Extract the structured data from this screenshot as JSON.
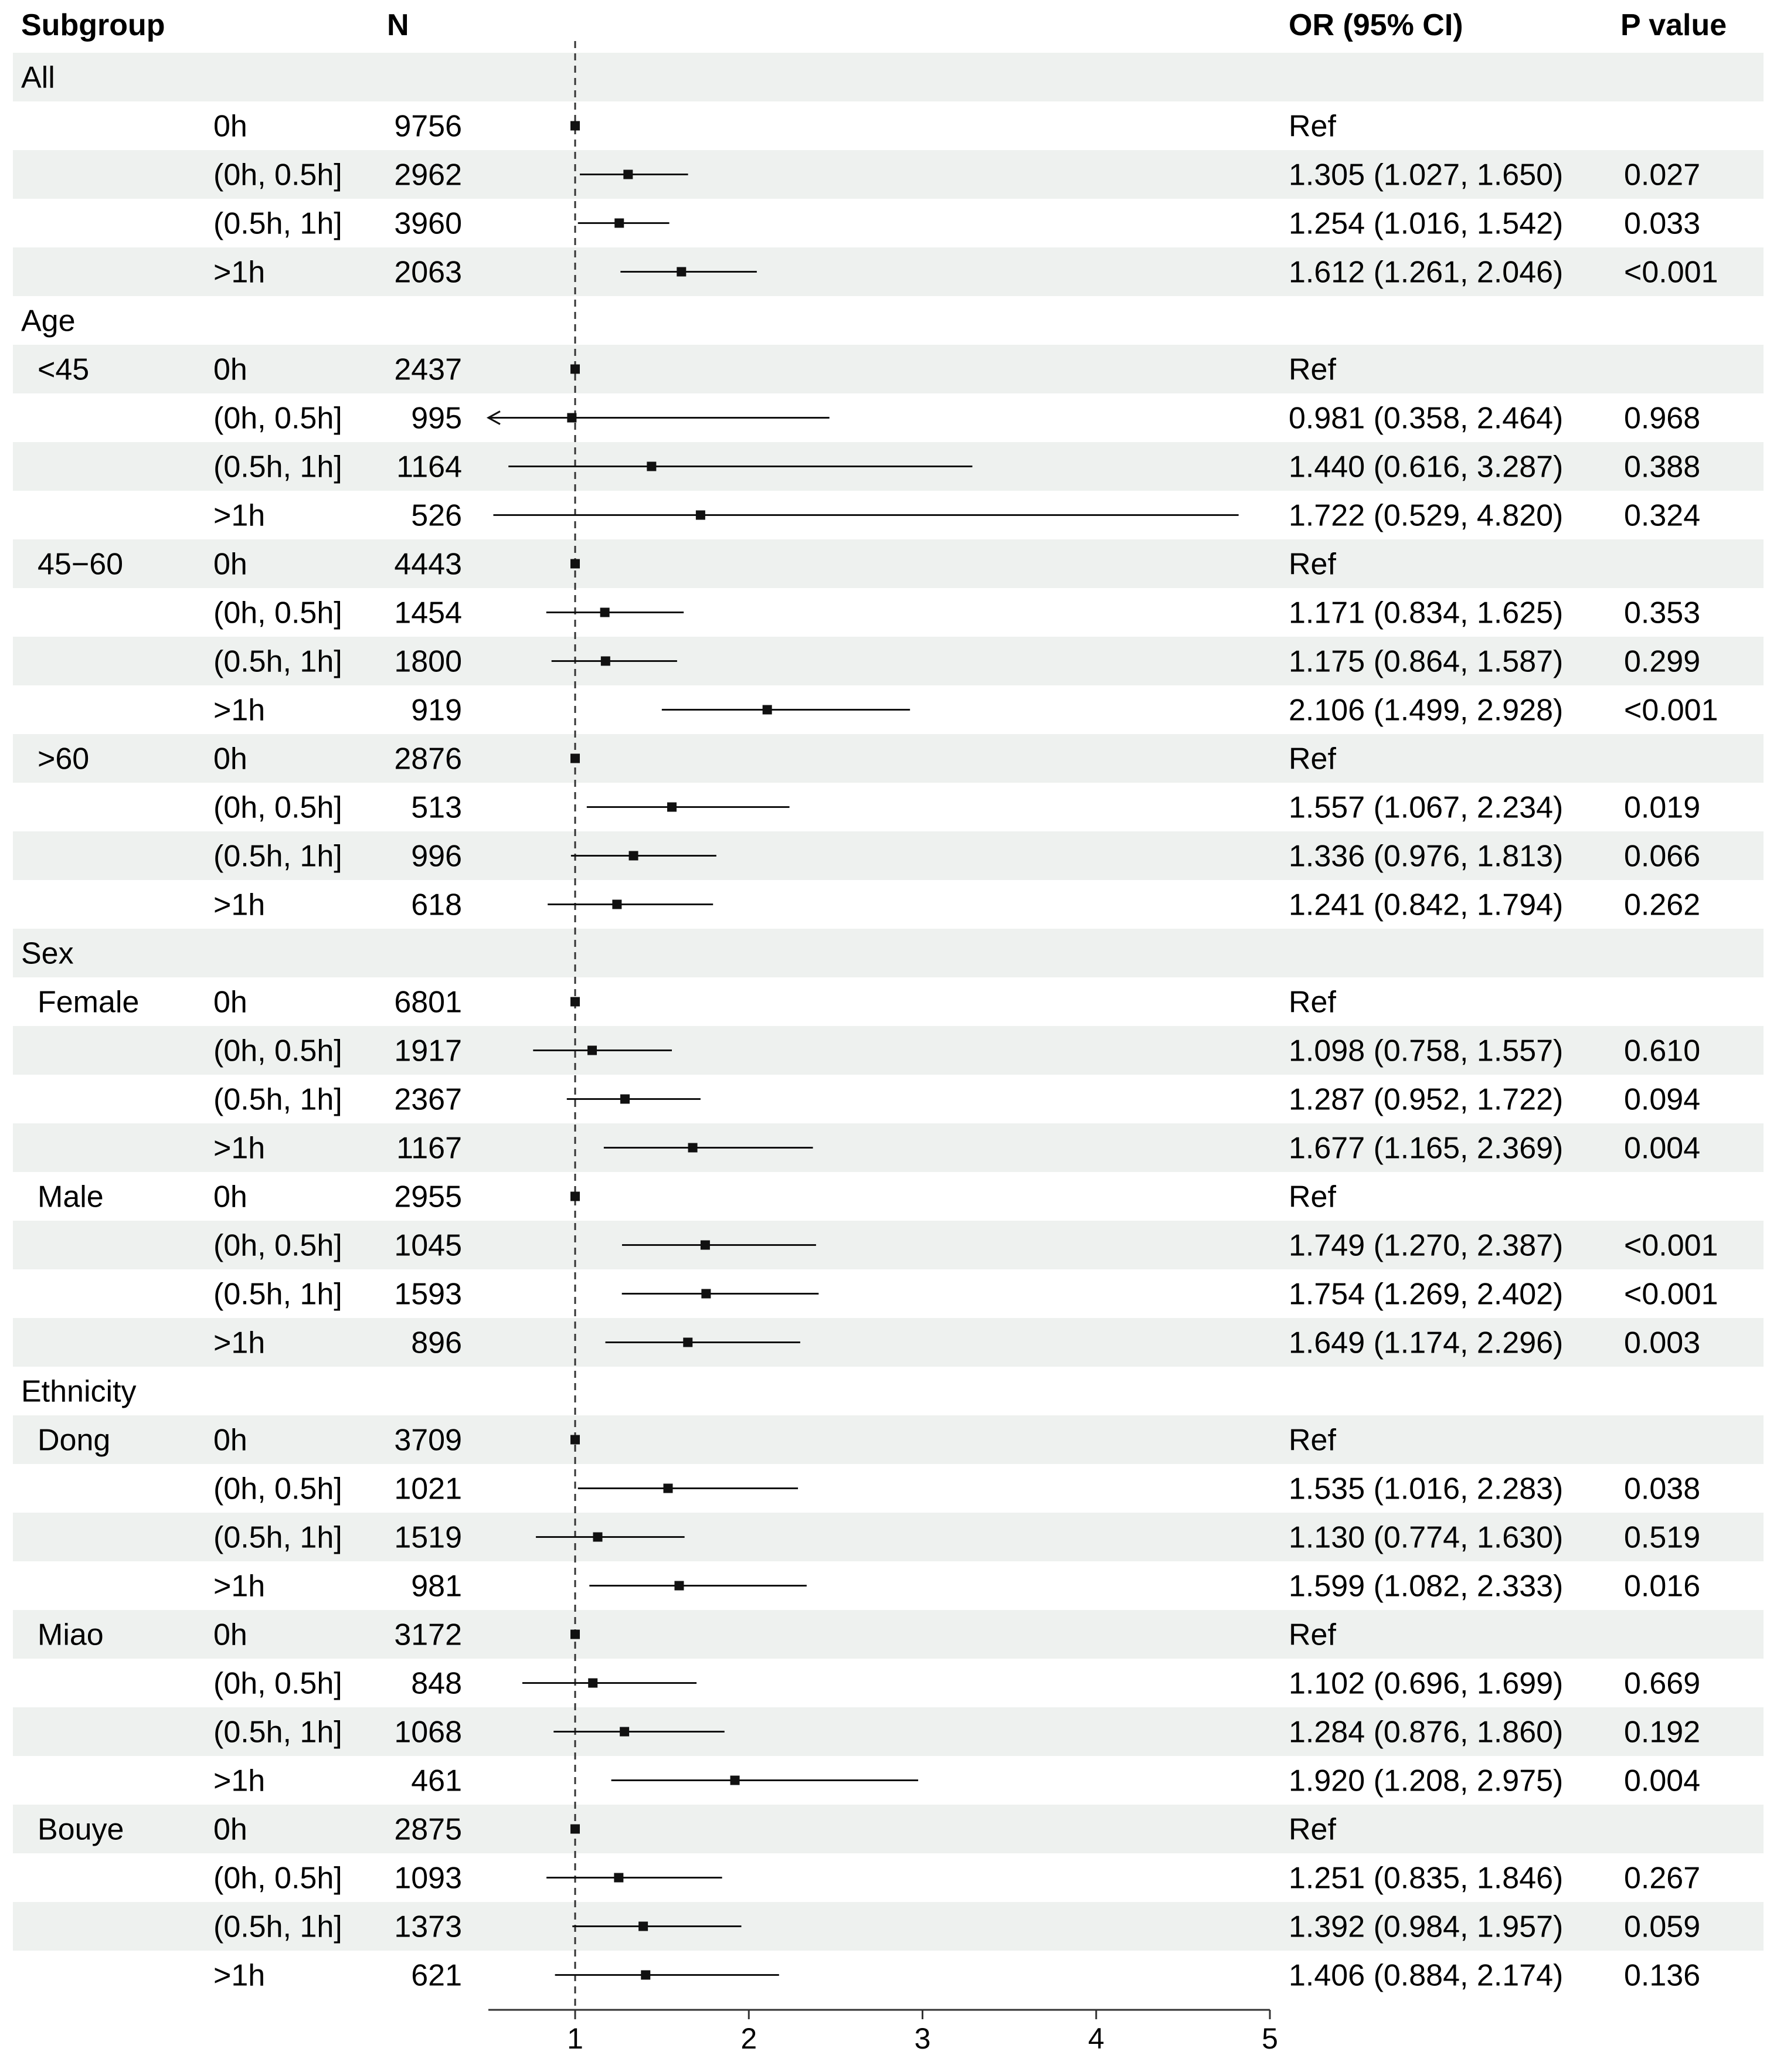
{
  "chart_data": {
    "type": "forest",
    "headers": {
      "subgroup": "Subgroup",
      "n": "N",
      "or": "OR (95% CI)",
      "p": "P value"
    },
    "reference_line": 1,
    "xlim": [
      0.5,
      5
    ],
    "ticks": [
      "1",
      "2",
      "3",
      "4",
      "5"
    ],
    "rows": [
      {
        "label": "All",
        "sub": "",
        "level": "",
        "n": "",
        "or": null,
        "lo": null,
        "hi": null,
        "or_text": "",
        "p": ""
      },
      {
        "label": "",
        "sub": "",
        "level": "0h",
        "n": "9756",
        "or": 1,
        "lo": 1,
        "hi": 1,
        "or_text": "Ref",
        "p": ""
      },
      {
        "label": "",
        "sub": "",
        "level": "(0h, 0.5h]",
        "n": "2962",
        "or": 1.305,
        "lo": 1.027,
        "hi": 1.65,
        "or_text": "1.305 (1.027, 1.650)",
        "p": "0.027"
      },
      {
        "label": "",
        "sub": "",
        "level": "(0.5h, 1h]",
        "n": "3960",
        "or": 1.254,
        "lo": 1.016,
        "hi": 1.542,
        "or_text": "1.254 (1.016, 1.542)",
        "p": "0.033"
      },
      {
        "label": "",
        "sub": "",
        "level": ">1h",
        "n": "2063",
        "or": 1.612,
        "lo": 1.261,
        "hi": 2.046,
        "or_text": "1.612 (1.261, 2.046)",
        "p": "<0.001"
      },
      {
        "label": "Age",
        "sub": "",
        "level": "",
        "n": "",
        "or": null,
        "lo": null,
        "hi": null,
        "or_text": "",
        "p": ""
      },
      {
        "label": "",
        "sub": "<45",
        "level": "0h",
        "n": "2437",
        "or": 1,
        "lo": 1,
        "hi": 1,
        "or_text": "Ref",
        "p": ""
      },
      {
        "label": "",
        "sub": "",
        "level": "(0h, 0.5h]",
        "n": "995",
        "or": 0.981,
        "lo": 0.358,
        "hi": 2.464,
        "or_text": "0.981 (0.358, 2.464)",
        "p": "0.968"
      },
      {
        "label": "",
        "sub": "",
        "level": "(0.5h, 1h]",
        "n": "1164",
        "or": 1.44,
        "lo": 0.616,
        "hi": 3.287,
        "or_text": "1.440 (0.616, 3.287)",
        "p": "0.388"
      },
      {
        "label": "",
        "sub": "",
        "level": ">1h",
        "n": "526",
        "or": 1.722,
        "lo": 0.529,
        "hi": 4.82,
        "or_text": "1.722 (0.529, 4.820)",
        "p": "0.324"
      },
      {
        "label": "",
        "sub": "45−60",
        "level": "0h",
        "n": "4443",
        "or": 1,
        "lo": 1,
        "hi": 1,
        "or_text": "Ref",
        "p": ""
      },
      {
        "label": "",
        "sub": "",
        "level": "(0h, 0.5h]",
        "n": "1454",
        "or": 1.171,
        "lo": 0.834,
        "hi": 1.625,
        "or_text": "1.171 (0.834, 1.625)",
        "p": "0.353"
      },
      {
        "label": "",
        "sub": "",
        "level": "(0.5h, 1h]",
        "n": "1800",
        "or": 1.175,
        "lo": 0.864,
        "hi": 1.587,
        "or_text": "1.175 (0.864, 1.587)",
        "p": "0.299"
      },
      {
        "label": "",
        "sub": "",
        "level": ">1h",
        "n": "919",
        "or": 2.106,
        "lo": 1.499,
        "hi": 2.928,
        "or_text": "2.106 (1.499, 2.928)",
        "p": "<0.001"
      },
      {
        "label": "",
        "sub": ">60",
        "level": "0h",
        "n": "2876",
        "or": 1,
        "lo": 1,
        "hi": 1,
        "or_text": "Ref",
        "p": ""
      },
      {
        "label": "",
        "sub": "",
        "level": "(0h, 0.5h]",
        "n": "513",
        "or": 1.557,
        "lo": 1.067,
        "hi": 2.234,
        "or_text": "1.557 (1.067, 2.234)",
        "p": "0.019"
      },
      {
        "label": "",
        "sub": "",
        "level": "(0.5h, 1h]",
        "n": "996",
        "or": 1.336,
        "lo": 0.976,
        "hi": 1.813,
        "or_text": "1.336 (0.976, 1.813)",
        "p": "0.066"
      },
      {
        "label": "",
        "sub": "",
        "level": ">1h",
        "n": "618",
        "or": 1.241,
        "lo": 0.842,
        "hi": 1.794,
        "or_text": "1.241 (0.842, 1.794)",
        "p": "0.262"
      },
      {
        "label": "Sex",
        "sub": "",
        "level": "",
        "n": "",
        "or": null,
        "lo": null,
        "hi": null,
        "or_text": "",
        "p": ""
      },
      {
        "label": "",
        "sub": "Female",
        "level": "0h",
        "n": "6801",
        "or": 1,
        "lo": 1,
        "hi": 1,
        "or_text": "Ref",
        "p": ""
      },
      {
        "label": "",
        "sub": "",
        "level": "(0h, 0.5h]",
        "n": "1917",
        "or": 1.098,
        "lo": 0.758,
        "hi": 1.557,
        "or_text": "1.098 (0.758, 1.557)",
        "p": "0.610"
      },
      {
        "label": "",
        "sub": "",
        "level": "(0.5h, 1h]",
        "n": "2367",
        "or": 1.287,
        "lo": 0.952,
        "hi": 1.722,
        "or_text": "1.287 (0.952, 1.722)",
        "p": "0.094"
      },
      {
        "label": "",
        "sub": "",
        "level": ">1h",
        "n": "1167",
        "or": 1.677,
        "lo": 1.165,
        "hi": 2.369,
        "or_text": "1.677 (1.165, 2.369)",
        "p": "0.004"
      },
      {
        "label": "",
        "sub": "Male",
        "level": "0h",
        "n": "2955",
        "or": 1,
        "lo": 1,
        "hi": 1,
        "or_text": "Ref",
        "p": ""
      },
      {
        "label": "",
        "sub": "",
        "level": "(0h, 0.5h]",
        "n": "1045",
        "or": 1.749,
        "lo": 1.27,
        "hi": 2.387,
        "or_text": "1.749 (1.270, 2.387)",
        "p": "<0.001"
      },
      {
        "label": "",
        "sub": "",
        "level": "(0.5h, 1h]",
        "n": "1593",
        "or": 1.754,
        "lo": 1.269,
        "hi": 2.402,
        "or_text": "1.754 (1.269, 2.402)",
        "p": "<0.001"
      },
      {
        "label": "",
        "sub": "",
        "level": ">1h",
        "n": "896",
        "or": 1.649,
        "lo": 1.174,
        "hi": 2.296,
        "or_text": "1.649 (1.174, 2.296)",
        "p": "0.003"
      },
      {
        "label": "Ethnicity",
        "sub": "",
        "level": "",
        "n": "",
        "or": null,
        "lo": null,
        "hi": null,
        "or_text": "",
        "p": ""
      },
      {
        "label": "",
        "sub": "Dong",
        "level": "0h",
        "n": "3709",
        "or": 1,
        "lo": 1,
        "hi": 1,
        "or_text": "Ref",
        "p": ""
      },
      {
        "label": "",
        "sub": "",
        "level": "(0h, 0.5h]",
        "n": "1021",
        "or": 1.535,
        "lo": 1.016,
        "hi": 2.283,
        "or_text": "1.535 (1.016, 2.283)",
        "p": "0.038"
      },
      {
        "label": "",
        "sub": "",
        "level": "(0.5h, 1h]",
        "n": "1519",
        "or": 1.13,
        "lo": 0.774,
        "hi": 1.63,
        "or_text": "1.130 (0.774, 1.630)",
        "p": "0.519"
      },
      {
        "label": "",
        "sub": "",
        "level": ">1h",
        "n": "981",
        "or": 1.599,
        "lo": 1.082,
        "hi": 2.333,
        "or_text": "1.599 (1.082, 2.333)",
        "p": "0.016"
      },
      {
        "label": "",
        "sub": "Miao",
        "level": "0h",
        "n": "3172",
        "or": 1,
        "lo": 1,
        "hi": 1,
        "or_text": "Ref",
        "p": ""
      },
      {
        "label": "",
        "sub": "",
        "level": "(0h, 0.5h]",
        "n": "848",
        "or": 1.102,
        "lo": 0.696,
        "hi": 1.699,
        "or_text": "1.102 (0.696, 1.699)",
        "p": "0.669"
      },
      {
        "label": "",
        "sub": "",
        "level": "(0.5h, 1h]",
        "n": "1068",
        "or": 1.284,
        "lo": 0.876,
        "hi": 1.86,
        "or_text": "1.284 (0.876, 1.860)",
        "p": "0.192"
      },
      {
        "label": "",
        "sub": "",
        "level": ">1h",
        "n": "461",
        "or": 1.92,
        "lo": 1.208,
        "hi": 2.975,
        "or_text": "1.920 (1.208, 2.975)",
        "p": "0.004"
      },
      {
        "label": "",
        "sub": "Bouye",
        "level": "0h",
        "n": "2875",
        "or": 1,
        "lo": 1,
        "hi": 1,
        "or_text": "Ref",
        "p": ""
      },
      {
        "label": "",
        "sub": "",
        "level": "(0h, 0.5h]",
        "n": "1093",
        "or": 1.251,
        "lo": 0.835,
        "hi": 1.846,
        "or_text": "1.251 (0.835, 1.846)",
        "p": "0.267"
      },
      {
        "label": "",
        "sub": "",
        "level": "(0.5h, 1h]",
        "n": "1373",
        "or": 1.392,
        "lo": 0.984,
        "hi": 1.957,
        "or_text": "1.392 (0.984, 1.957)",
        "p": "0.059"
      },
      {
        "label": "",
        "sub": "",
        "level": ">1h",
        "n": "621",
        "or": 1.406,
        "lo": 0.884,
        "hi": 2.174,
        "or_text": "1.406 (0.884, 2.174)",
        "p": "0.136"
      }
    ]
  }
}
